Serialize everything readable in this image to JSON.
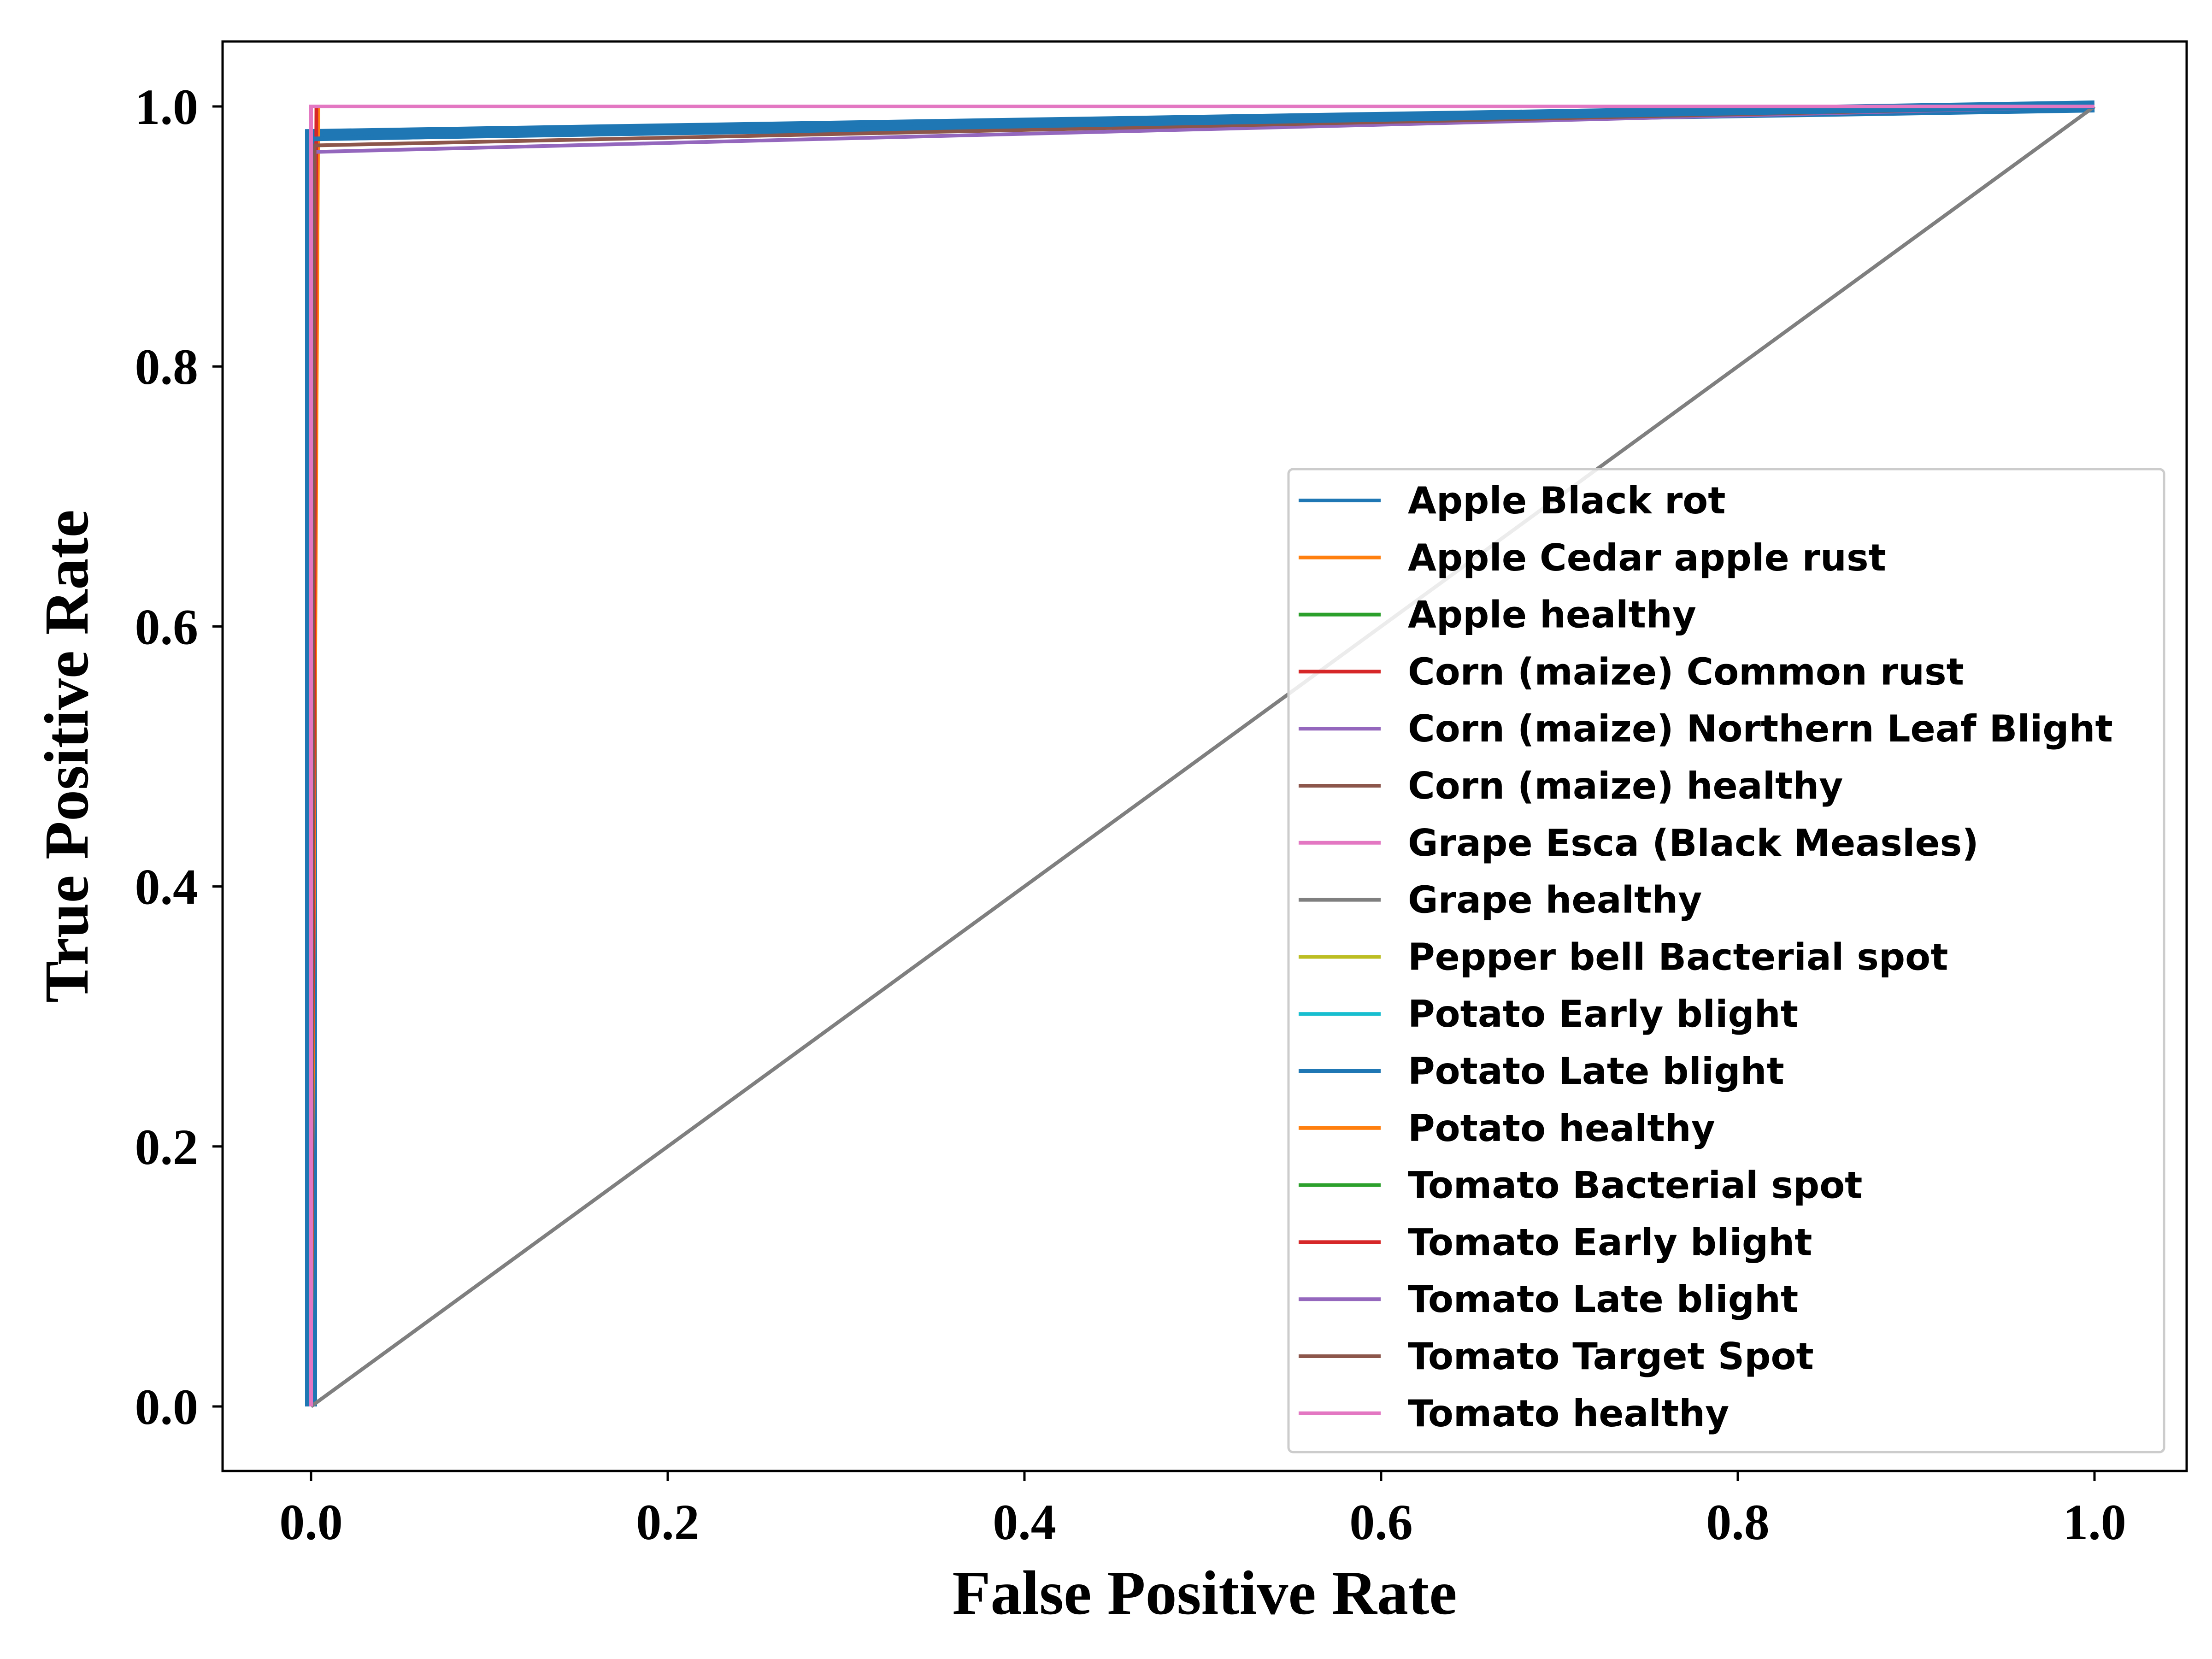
{
  "chart_data": {
    "type": "line",
    "title": "",
    "xlabel": "False Positive Rate",
    "ylabel": "True Positive Rate",
    "xlim": [
      -0.05,
      1.05
    ],
    "ylim": [
      -0.05,
      1.05
    ],
    "xticks": [
      0.0,
      0.2,
      0.4,
      0.6,
      0.8,
      1.0
    ],
    "yticks": [
      0.0,
      0.2,
      0.4,
      0.6,
      0.8,
      1.0
    ],
    "xtick_labels": [
      "0.0",
      "0.2",
      "0.4",
      "0.6",
      "0.8",
      "1.0"
    ],
    "ytick_labels": [
      "0.0",
      "0.2",
      "0.4",
      "0.6",
      "0.8",
      "1.0"
    ],
    "grid": false,
    "legend_position": "lower-right",
    "series": [
      {
        "name": "Apple Black rot",
        "color": "#1f77b4",
        "x": [
          0.0,
          0.0,
          1.0
        ],
        "y": [
          0.0,
          0.978,
          1.0
        ]
      },
      {
        "name": "Apple Cedar apple rust",
        "color": "#ff7f0e",
        "x": [
          0.0,
          0.004,
          1.0
        ],
        "y": [
          0.0,
          1.0,
          1.0
        ]
      },
      {
        "name": "Apple healthy",
        "color": "#2ca02c",
        "x": [
          0.0,
          0.0,
          1.0
        ],
        "y": [
          0.0,
          1.0,
          1.0
        ]
      },
      {
        "name": "Corn (maize) Common rust",
        "color": "#d62728",
        "x": [
          0.0,
          0.003,
          1.0
        ],
        "y": [
          0.0,
          1.0,
          1.0
        ]
      },
      {
        "name": "Corn (maize) Northern Leaf Blight",
        "color": "#9467bd",
        "x": [
          0.0,
          0.002,
          1.0
        ],
        "y": [
          0.0,
          0.965,
          1.0
        ]
      },
      {
        "name": "Corn (maize) healthy",
        "color": "#8c564b",
        "x": [
          0.0,
          0.002,
          1.0
        ],
        "y": [
          0.0,
          0.97,
          1.0
        ]
      },
      {
        "name": "Grape Esca (Black Measles)",
        "color": "#e377c2",
        "x": [
          0.0,
          0.0,
          1.0
        ],
        "y": [
          0.0,
          1.0,
          1.0
        ]
      },
      {
        "name": "Grape healthy",
        "color": "#7f7f7f",
        "x": [
          0.0,
          1.0
        ],
        "y": [
          0.0,
          1.0
        ]
      },
      {
        "name": "Pepper bell Bacterial spot",
        "color": "#bcbd22",
        "x": [
          0.0,
          0.0,
          1.0
        ],
        "y": [
          0.0,
          1.0,
          1.0
        ]
      },
      {
        "name": "Potato Early blight",
        "color": "#17becf",
        "x": [
          0.0,
          0.0,
          1.0
        ],
        "y": [
          0.0,
          1.0,
          1.0
        ]
      },
      {
        "name": "Potato Late blight",
        "color": "#1f77b4",
        "x": [
          0.0,
          0.0,
          1.0
        ],
        "y": [
          0.0,
          0.975,
          1.0
        ]
      },
      {
        "name": "Potato healthy",
        "color": "#ff7f0e",
        "x": [
          0.0,
          0.0,
          1.0
        ],
        "y": [
          0.0,
          1.0,
          1.0
        ]
      },
      {
        "name": "Tomato Bacterial spot",
        "color": "#2ca02c",
        "x": [
          0.0,
          0.0,
          1.0
        ],
        "y": [
          0.0,
          1.0,
          1.0
        ]
      },
      {
        "name": "Tomato Early blight",
        "color": "#d62728",
        "x": [
          0.0,
          0.0,
          1.0
        ],
        "y": [
          0.0,
          1.0,
          1.0
        ]
      },
      {
        "name": "Tomato Late blight",
        "color": "#9467bd",
        "x": [
          0.0,
          0.0,
          1.0
        ],
        "y": [
          0.0,
          1.0,
          1.0
        ]
      },
      {
        "name": "Tomato Target Spot",
        "color": "#8c564b",
        "x": [
          0.0,
          0.0,
          1.0
        ],
        "y": [
          0.0,
          1.0,
          1.0
        ]
      },
      {
        "name": "Tomato healthy",
        "color": "#e377c2",
        "x": [
          0.0,
          0.0,
          1.0
        ],
        "y": [
          0.0,
          1.0,
          1.0
        ]
      }
    ]
  }
}
